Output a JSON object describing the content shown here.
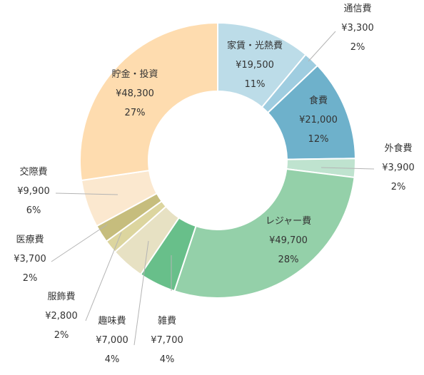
{
  "chart_data": {
    "type": "pie",
    "variant": "donut",
    "title": "",
    "slices": [
      {
        "name": "家賃・光熱費",
        "value_label": "¥19,500",
        "pct_label": "11%",
        "value": 19500,
        "color": "#bcdce8"
      },
      {
        "name": "通信費",
        "value_label": "¥3,300",
        "pct_label": "2%",
        "value": 3300,
        "color": "#9fcde0"
      },
      {
        "name": "食費",
        "value_label": "¥21,000",
        "pct_label": "12%",
        "value": 21000,
        "color": "#6eb1cb"
      },
      {
        "name": "外食費",
        "value_label": "¥3,900",
        "pct_label": "2%",
        "value": 3900,
        "color": "#bfe3cf"
      },
      {
        "name": "レジャー費",
        "value_label": "¥49,700",
        "pct_label": "28%",
        "value": 49700,
        "color": "#94d0a9"
      },
      {
        "name": "雑費",
        "value_label": "¥7,700",
        "pct_label": "4%",
        "value": 7700,
        "color": "#68bf8a"
      },
      {
        "name": "趣味費",
        "value_label": "¥7,000",
        "pct_label": "4%",
        "value": 7000,
        "color": "#e7e1c3"
      },
      {
        "name": "服飾費",
        "value_label": "¥2,800",
        "pct_label": "2%",
        "value": 2800,
        "color": "#dcd59f"
      },
      {
        "name": "医療費",
        "value_label": "¥3,700",
        "pct_label": "2%",
        "value": 3700,
        "color": "#c6bd7d"
      },
      {
        "name": "交際費",
        "value_label": "¥9,900",
        "pct_label": "6%",
        "value": 9900,
        "color": "#fbe8cf"
      },
      {
        "name": "貯金・投資",
        "value_label": "¥48,300",
        "pct_label": "27%",
        "value": 48300,
        "color": "#fedcaf"
      }
    ]
  }
}
